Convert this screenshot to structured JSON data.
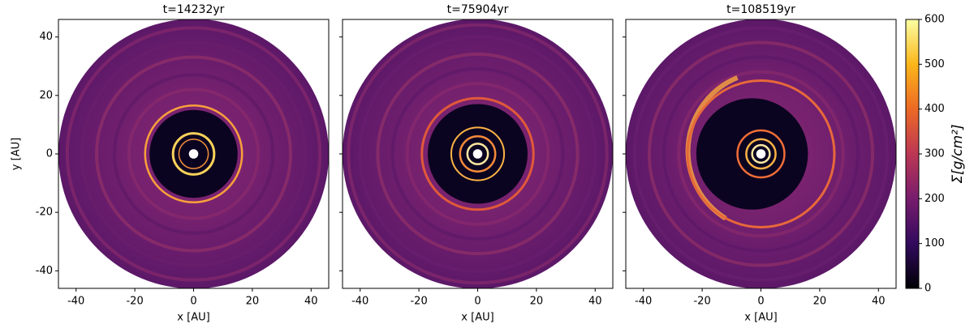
{
  "chart_data": [
    {
      "type": "image",
      "title": "t=14232yr",
      "xlabel": "x [AU]",
      "ylabel": "y [AU]",
      "xlim": [
        -46,
        46
      ],
      "ylim": [
        -46,
        46
      ],
      "xticks": [
        -40,
        -20,
        0,
        20,
        40
      ],
      "yticks": [
        -40,
        -20,
        0,
        20,
        40
      ],
      "ytick_labels": true
    },
    {
      "type": "image",
      "title": "t=75904yr",
      "xlabel": "x [AU]",
      "xlim": [
        -46,
        46
      ],
      "ylim": [
        -46,
        46
      ],
      "xticks": [
        -40,
        -20,
        0,
        20,
        40
      ],
      "yticks": [
        -40,
        -20,
        0,
        20,
        40
      ],
      "ytick_labels": false
    },
    {
      "type": "image",
      "title": "t=108519yr",
      "xlabel": "x [AU]",
      "xlim": [
        -46,
        46
      ],
      "ylim": [
        -46,
        46
      ],
      "xticks": [
        -40,
        -20,
        0,
        20,
        40
      ],
      "yticks": [
        -40,
        -20,
        0,
        20,
        40
      ],
      "ytick_labels": false
    }
  ],
  "colorbar": {
    "label": "Σ[g/cm²]",
    "lim": [
      0,
      600
    ],
    "ticks": [
      0,
      100,
      200,
      300,
      400,
      500,
      600
    ],
    "colormap": "inferno"
  }
}
